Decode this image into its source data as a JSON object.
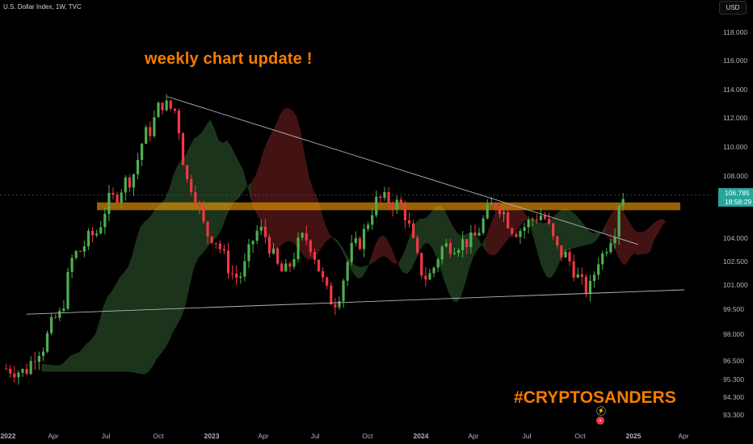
{
  "header": {
    "symbol_title": "U.S. Dollar Index, 1W, TVC",
    "currency_button": "USD"
  },
  "annotations": {
    "weekly_update": "weekly chart update !",
    "signature": "#CRYPTOSANDERS",
    "color": "#f57c00"
  },
  "last_price": {
    "value": "106.785",
    "countdown": "18:58:29",
    "color": "#26a69a"
  },
  "colors": {
    "up": "#4caf50",
    "down": "#f23645",
    "cloud_bull": "#1e3a1e",
    "cloud_bear": "#4a1414",
    "zone": "#f5a000",
    "trendline": "#b2b5be"
  },
  "icons": [
    "lightning-icon",
    "event-icon"
  ],
  "chart_data": {
    "type": "candlestick",
    "title": "U.S. Dollar Index, 1W, TVC",
    "ylim": [
      92.7,
      119.5
    ],
    "y_ticks": [
      "118.000",
      "116.000",
      "114.000",
      "112.000",
      "110.000",
      "108.000",
      "104.000",
      "102.500",
      "101.000",
      "99.500",
      "98.000",
      "96.500",
      "95.300",
      "94.300",
      "93.300"
    ],
    "x_ticks": [
      "2022",
      "Apr",
      "Jul",
      "Oct",
      "2023",
      "Apr",
      "Jul",
      "Oct",
      "2024",
      "Apr",
      "Jul",
      "Oct",
      "2025",
      "Apr"
    ],
    "close_path": [
      [
        "2022-01-02",
        96.0
      ],
      [
        "2022-02-01",
        95.8
      ],
      [
        "2022-03-01",
        97.2
      ],
      [
        "2022-04-01",
        99.0
      ],
      [
        "2022-05-01",
        103.0
      ],
      [
        "2022-06-01",
        104.2
      ],
      [
        "2022-07-01",
        106.5
      ],
      [
        "2022-08-01",
        107.8
      ],
      [
        "2022-09-01",
        111.0
      ],
      [
        "2022-09-25",
        113.0
      ],
      [
        "2022-10-15",
        112.6
      ],
      [
        "2022-11-10",
        107.5
      ],
      [
        "2022-12-15",
        104.2
      ],
      [
        "2023-02-01",
        101.5
      ],
      [
        "2023-03-10",
        104.5
      ],
      [
        "2023-04-20",
        101.8
      ],
      [
        "2023-05-25",
        104.0
      ],
      [
        "2023-07-15",
        100.0
      ],
      [
        "2023-08-20",
        103.5
      ],
      [
        "2023-10-01",
        106.5
      ],
      [
        "2023-11-01",
        106.2
      ],
      [
        "2023-12-20",
        101.5
      ],
      [
        "2024-01-20",
        103.5
      ],
      [
        "2024-03-01",
        103.8
      ],
      [
        "2024-04-15",
        106.2
      ],
      [
        "2024-05-20",
        104.5
      ],
      [
        "2024-07-01",
        105.5
      ],
      [
        "2024-08-05",
        103.0
      ],
      [
        "2024-09-20",
        100.7
      ],
      [
        "2024-10-10",
        102.8
      ],
      [
        "2024-10-31",
        104.2
      ],
      [
        "2024-11-15",
        106.8
      ]
    ],
    "resistance_zone": [
      105.8,
      106.3
    ],
    "descending_trendline": [
      [
        "2022-10-01",
        113.5
      ],
      [
        "2024-12-10",
        103.6
      ]
    ],
    "ascending_trendline": [
      [
        "2022-01-01",
        99.2
      ],
      [
        "2025-04-01",
        100.7
      ]
    ],
    "crosshair_price": 106.785
  }
}
